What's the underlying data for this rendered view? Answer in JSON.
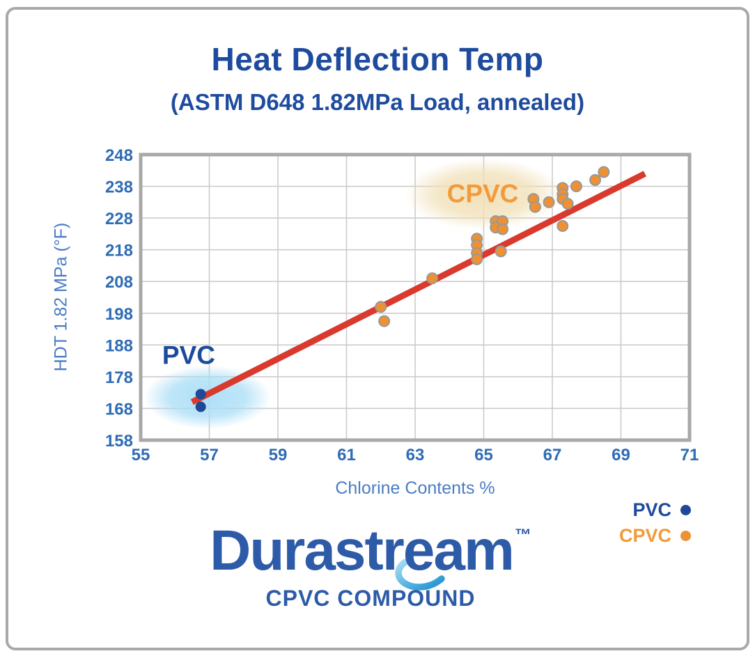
{
  "title": "Heat Deflection Temp",
  "subtitle": "(ASTM D648 1.82MPa Load, annealed)",
  "chart_data": {
    "type": "scatter",
    "title": "Heat Deflection Temp",
    "subtitle": "(ASTM D648 1.82MPa Load, annealed)",
    "xlabel": "Chlorine Contents %",
    "ylabel": "HDT 1.82 MPa (°F)",
    "xlim": [
      55,
      71
    ],
    "ylim": [
      158,
      248
    ],
    "xticks": [
      55,
      57,
      59,
      61,
      63,
      65,
      67,
      69,
      71
    ],
    "yticks": [
      158,
      168,
      178,
      188,
      198,
      208,
      218,
      228,
      238,
      248
    ],
    "grid": true,
    "grid_color": "#cbcbcb",
    "border_color": "#a8a8a8",
    "series": [
      {
        "name": "PVC",
        "color": "#1f4896",
        "marker_stroke": "none",
        "points": [
          [
            56.75,
            172.5
          ],
          [
            56.75,
            168.5
          ]
        ]
      },
      {
        "name": "CPVC",
        "color": "#ee9133",
        "marker_stroke": "#97989b",
        "points": [
          [
            62.0,
            200
          ],
          [
            62.1,
            195.5
          ],
          [
            63.5,
            209
          ],
          [
            64.8,
            221.5
          ],
          [
            64.8,
            219.5
          ],
          [
            64.8,
            217
          ],
          [
            64.8,
            215
          ],
          [
            65.5,
            217.5
          ],
          [
            65.35,
            227
          ],
          [
            65.55,
            227
          ],
          [
            65.35,
            225
          ],
          [
            65.55,
            224.5
          ],
          [
            66.45,
            234
          ],
          [
            66.5,
            231.5
          ],
          [
            66.9,
            233
          ],
          [
            67.3,
            237.5
          ],
          [
            67.3,
            235.5
          ],
          [
            67.3,
            234
          ],
          [
            67.45,
            232.5
          ],
          [
            67.3,
            225.5
          ],
          [
            67.7,
            238
          ],
          [
            68.25,
            240
          ],
          [
            68.5,
            242.5
          ]
        ]
      }
    ],
    "trendline": {
      "color": "#d93a2d",
      "width": 9,
      "from": [
        56.5,
        170
      ],
      "to": [
        69.7,
        242
      ]
    },
    "annotations": [
      {
        "text": "PVC",
        "color": "#1c4a9c",
        "text_x": 56.4,
        "text_y": 182,
        "glow": {
          "cx": 56.95,
          "cy": 171.5,
          "rx": 1.85,
          "ry": 10,
          "color": "#a9ddf6"
        }
      },
      {
        "text": "CPVC",
        "color": "#f39b3b",
        "text_x": 64.97,
        "text_y": 233,
        "glow": {
          "cx": 65.0,
          "cy": 235.5,
          "rx": 2.3,
          "ry": 11.2,
          "color": "#f1e0b8"
        }
      }
    ],
    "legend": [
      {
        "label": "PVC",
        "color": "#1c4a9c",
        "dot": "#1f4896"
      },
      {
        "label": "CPVC",
        "color": "#f29a38",
        "dot": "#ee9133"
      }
    ],
    "legend_position": "bottom-right"
  },
  "logo": {
    "name": "Durastream",
    "tm": "™",
    "subtitle": "CPVC COMPOUND"
  },
  "colors": {
    "title_navy": "#1e4b9e",
    "tick_blue": "#2e6cb5",
    "axis_label_blue": "#4a7cc3",
    "trend_red": "#d93a2d",
    "cpvc_orange": "#ee9133",
    "pvc_navy": "#1f4896",
    "logo_blue": "#2d5ba8",
    "frame_gray": "#a9a9a9"
  }
}
